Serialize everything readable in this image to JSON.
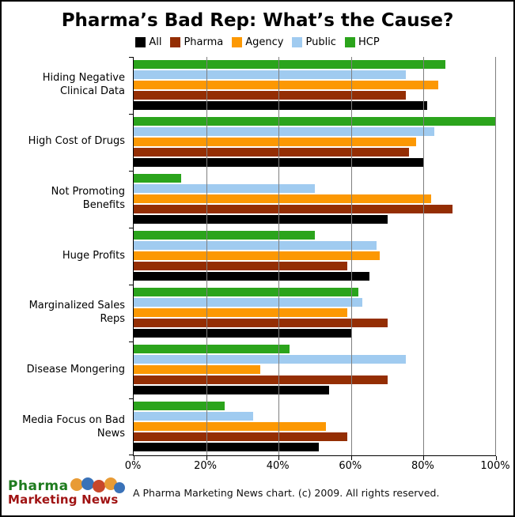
{
  "chart_data": {
    "type": "bar",
    "orientation": "horizontal",
    "title": "Pharma’s Bad Rep: What’s the Cause?",
    "categories": [
      "Hiding Negative Clinical Data",
      "High Cost of Drugs",
      "Not Promoting Benefits",
      "Huge Profits",
      "Marginalized Sales Reps",
      "Disease Mongering",
      "Media Focus on Bad News"
    ],
    "series": [
      {
        "name": "All",
        "color": "#000000",
        "values": [
          81,
          80,
          70,
          65,
          60,
          54,
          51
        ]
      },
      {
        "name": "Pharma",
        "color": "#942E04",
        "values": [
          75,
          76,
          88,
          59,
          70,
          70,
          59
        ]
      },
      {
        "name": "Agency",
        "color": "#FC9803",
        "values": [
          84,
          78,
          82,
          68,
          59,
          35,
          53
        ]
      },
      {
        "name": "Public",
        "color": "#A0CBF0",
        "values": [
          75,
          83,
          50,
          67,
          63,
          75,
          33
        ]
      },
      {
        "name": "HCP",
        "color": "#2BA41C",
        "values": [
          86,
          100,
          13,
          50,
          62,
          43,
          25
        ]
      }
    ],
    "bar_display_order_top_to_bottom": [
      "HCP",
      "Public",
      "Agency",
      "Pharma",
      "All"
    ],
    "x_axis": {
      "min": 0,
      "max": 100,
      "unit": "%",
      "tick_values": [
        0,
        20,
        40,
        60,
        80,
        100
      ],
      "tick_labels": [
        "0%",
        "20%",
        "40%",
        "60%",
        "80%",
        "100%"
      ]
    },
    "legend_position": "top",
    "grid": true,
    "gridline_color": "#7f7f7f"
  },
  "footer": {
    "credit": "A Pharma Marketing News chart. (c) 2009. All rights reserved.",
    "logo": {
      "line1": "Pharma",
      "line2": "Marketing News",
      "line1_color": "#1E7B1E",
      "line2_color": "#A01313",
      "icon": "pills-icon",
      "pill_colors": [
        "#E89B35",
        "#3A72B8",
        "#C8472A",
        "#E89B35",
        "#3A72B8"
      ]
    }
  }
}
